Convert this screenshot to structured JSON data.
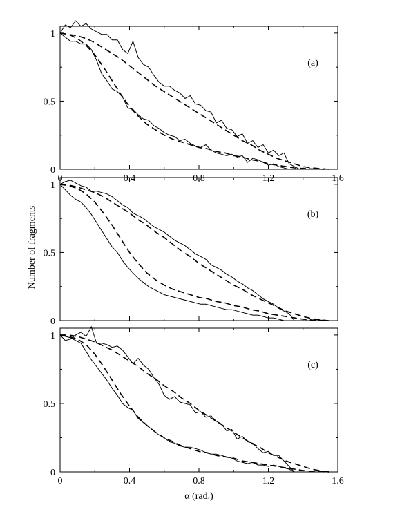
{
  "figure": {
    "ylabel": "Number of fragments",
    "xlabel": "α (rad.)"
  },
  "chart_data": [
    {
      "type": "line",
      "panel_label": "(a)",
      "xlim": [
        0,
        1.6
      ],
      "ylim": [
        0,
        1.05
      ],
      "x_ticks": [
        "0",
        "0.4",
        "0.8",
        "1.2",
        "1.6"
      ],
      "x_tick_values": [
        0,
        0.4,
        0.8,
        1.2,
        1.6
      ],
      "y_ticks": [
        "0",
        "0.5",
        "1"
      ],
      "y_tick_values": [
        0,
        0.5,
        1
      ],
      "series": [
        {
          "style": "solid",
          "x": [
            0,
            0.03,
            0.06,
            0.09,
            0.12,
            0.15,
            0.18,
            0.21,
            0.24,
            0.27,
            0.3,
            0.33,
            0.36,
            0.39,
            0.42,
            0.45,
            0.48,
            0.51,
            0.54,
            0.57,
            0.6,
            0.63,
            0.66,
            0.69,
            0.72,
            0.75,
            0.78,
            0.81,
            0.84,
            0.87,
            0.9,
            0.93,
            0.96,
            0.99,
            1.02,
            1.05,
            1.08,
            1.11,
            1.14,
            1.17,
            1.2,
            1.23,
            1.26,
            1.29,
            1.32,
            1.35,
            1.38
          ],
          "y": [
            1.0,
            1.06,
            1.04,
            1.09,
            1.05,
            1.07,
            1.03,
            1.01,
            0.99,
            0.99,
            0.95,
            0.95,
            0.88,
            0.85,
            0.94,
            0.82,
            0.77,
            0.75,
            0.69,
            0.64,
            0.61,
            0.61,
            0.58,
            0.56,
            0.52,
            0.54,
            0.48,
            0.47,
            0.43,
            0.42,
            0.34,
            0.36,
            0.3,
            0.29,
            0.24,
            0.26,
            0.19,
            0.21,
            0.16,
            0.18,
            0.12,
            0.14,
            0.1,
            0.12,
            0.04,
            0.02,
            0.0
          ]
        },
        {
          "style": "solid",
          "x": [
            0,
            0.03,
            0.06,
            0.09,
            0.12,
            0.15,
            0.18,
            0.21,
            0.24,
            0.27,
            0.3,
            0.33,
            0.36,
            0.39,
            0.42,
            0.45,
            0.48,
            0.51,
            0.54,
            0.57,
            0.6,
            0.63,
            0.66,
            0.69,
            0.72,
            0.75,
            0.78,
            0.81,
            0.84,
            0.87,
            0.9,
            0.93,
            0.96,
            0.99,
            1.02,
            1.05,
            1.08,
            1.11,
            1.14,
            1.17,
            1.2,
            1.23,
            1.26,
            1.29,
            1.32
          ],
          "y": [
            1.0,
            0.97,
            0.94,
            0.94,
            0.92,
            0.92,
            0.88,
            0.8,
            0.7,
            0.65,
            0.59,
            0.57,
            0.53,
            0.45,
            0.44,
            0.4,
            0.37,
            0.36,
            0.32,
            0.3,
            0.27,
            0.25,
            0.24,
            0.21,
            0.22,
            0.19,
            0.17,
            0.16,
            0.18,
            0.14,
            0.12,
            0.11,
            0.1,
            0.11,
            0.09,
            0.1,
            0.05,
            0.08,
            0.07,
            0.05,
            0.03,
            0.04,
            0.02,
            0.01,
            0.0
          ]
        },
        {
          "style": "dashed",
          "x": [
            0,
            0.05,
            0.1,
            0.15,
            0.2,
            0.25,
            0.3,
            0.35,
            0.4,
            0.45,
            0.5,
            0.55,
            0.6,
            0.65,
            0.7,
            0.75,
            0.8,
            0.85,
            0.9,
            0.95,
            1.0,
            1.05,
            1.1,
            1.15,
            1.2,
            1.25,
            1.3,
            1.35,
            1.4,
            1.45,
            1.5,
            1.55
          ],
          "y": [
            1.0,
            0.99,
            0.98,
            0.96,
            0.93,
            0.89,
            0.85,
            0.81,
            0.76,
            0.71,
            0.66,
            0.61,
            0.57,
            0.53,
            0.49,
            0.45,
            0.41,
            0.37,
            0.33,
            0.29,
            0.25,
            0.21,
            0.18,
            0.14,
            0.11,
            0.08,
            0.06,
            0.04,
            0.02,
            0.01,
            0.005,
            0.0
          ]
        },
        {
          "style": "dashed",
          "x": [
            0,
            0.05,
            0.1,
            0.15,
            0.2,
            0.25,
            0.3,
            0.35,
            0.4,
            0.45,
            0.5,
            0.55,
            0.6,
            0.65,
            0.7,
            0.75,
            0.8,
            0.85,
            0.9,
            0.95,
            1.0,
            1.05,
            1.1,
            1.15,
            1.2,
            1.25,
            1.3,
            1.35,
            1.4,
            1.45,
            1.5,
            1.55
          ],
          "y": [
            1.0,
            0.99,
            0.96,
            0.91,
            0.84,
            0.75,
            0.65,
            0.55,
            0.46,
            0.39,
            0.33,
            0.29,
            0.25,
            0.22,
            0.2,
            0.18,
            0.16,
            0.15,
            0.13,
            0.12,
            0.1,
            0.09,
            0.07,
            0.06,
            0.04,
            0.03,
            0.02,
            0.01,
            0.006,
            0.003,
            0.001,
            0.0
          ]
        }
      ]
    },
    {
      "type": "line",
      "panel_label": "(b)",
      "xlim": [
        0,
        1.6
      ],
      "ylim": [
        0,
        1.05
      ],
      "x_ticks": [],
      "x_tick_values": [
        0,
        0.4,
        0.8,
        1.2,
        1.6
      ],
      "y_ticks": [
        "0",
        "0.5",
        "1"
      ],
      "y_tick_values": [
        0,
        0.5,
        1
      ],
      "series": [
        {
          "style": "solid",
          "x": [
            0,
            0.03,
            0.06,
            0.09,
            0.12,
            0.15,
            0.18,
            0.21,
            0.24,
            0.27,
            0.3,
            0.33,
            0.36,
            0.39,
            0.42,
            0.45,
            0.48,
            0.51,
            0.54,
            0.57,
            0.6,
            0.63,
            0.66,
            0.69,
            0.72,
            0.75,
            0.78,
            0.81,
            0.84,
            0.87,
            0.9,
            0.93,
            0.96,
            0.99,
            1.02,
            1.05,
            1.08,
            1.11,
            1.14,
            1.17,
            1.2,
            1.23,
            1.26,
            1.29,
            1.32,
            1.35
          ],
          "y": [
            1.0,
            1.02,
            1.03,
            1.01,
            0.99,
            0.98,
            0.95,
            0.95,
            0.94,
            0.93,
            0.91,
            0.88,
            0.85,
            0.83,
            0.79,
            0.77,
            0.75,
            0.72,
            0.69,
            0.67,
            0.65,
            0.62,
            0.59,
            0.57,
            0.55,
            0.52,
            0.49,
            0.47,
            0.45,
            0.41,
            0.39,
            0.37,
            0.34,
            0.32,
            0.29,
            0.27,
            0.24,
            0.22,
            0.19,
            0.16,
            0.14,
            0.12,
            0.09,
            0.07,
            0.05,
            0.0
          ]
        },
        {
          "style": "solid",
          "x": [
            0,
            0.03,
            0.06,
            0.09,
            0.12,
            0.15,
            0.18,
            0.21,
            0.24,
            0.27,
            0.3,
            0.33,
            0.36,
            0.39,
            0.42,
            0.45,
            0.48,
            0.51,
            0.54,
            0.57,
            0.6,
            0.63,
            0.66,
            0.69,
            0.72,
            0.75,
            0.78,
            0.81,
            0.84,
            0.87,
            0.9,
            0.93,
            0.96,
            0.99,
            1.02,
            1.05,
            1.08,
            1.11,
            1.14,
            1.17,
            1.2,
            1.23,
            1.26,
            1.29
          ],
          "y": [
            1.0,
            0.96,
            0.92,
            0.89,
            0.87,
            0.83,
            0.78,
            0.72,
            0.66,
            0.6,
            0.54,
            0.5,
            0.44,
            0.39,
            0.35,
            0.31,
            0.28,
            0.25,
            0.23,
            0.21,
            0.19,
            0.18,
            0.17,
            0.16,
            0.15,
            0.14,
            0.13,
            0.12,
            0.12,
            0.11,
            0.1,
            0.09,
            0.08,
            0.08,
            0.07,
            0.06,
            0.05,
            0.04,
            0.04,
            0.03,
            0.02,
            0.02,
            0.01,
            0.0
          ]
        },
        {
          "style": "dashed",
          "x": [
            0,
            0.05,
            0.1,
            0.15,
            0.2,
            0.25,
            0.3,
            0.35,
            0.4,
            0.45,
            0.5,
            0.55,
            0.6,
            0.65,
            0.7,
            0.75,
            0.8,
            0.85,
            0.9,
            0.95,
            1.0,
            1.05,
            1.1,
            1.15,
            1.2,
            1.25,
            1.3,
            1.35,
            1.4,
            1.45,
            1.5,
            1.55
          ],
          "y": [
            1.0,
            0.995,
            0.98,
            0.96,
            0.94,
            0.91,
            0.87,
            0.83,
            0.79,
            0.74,
            0.7,
            0.65,
            0.61,
            0.56,
            0.51,
            0.47,
            0.42,
            0.38,
            0.34,
            0.3,
            0.26,
            0.23,
            0.19,
            0.16,
            0.13,
            0.1,
            0.07,
            0.05,
            0.03,
            0.015,
            0.005,
            0.0
          ]
        },
        {
          "style": "dashed",
          "x": [
            0,
            0.05,
            0.1,
            0.15,
            0.2,
            0.25,
            0.3,
            0.35,
            0.4,
            0.45,
            0.5,
            0.55,
            0.6,
            0.65,
            0.7,
            0.75,
            0.8,
            0.85,
            0.9,
            0.95,
            1.0,
            1.05,
            1.1,
            1.15,
            1.2,
            1.25,
            1.3,
            1.35,
            1.4,
            1.45,
            1.5,
            1.55
          ],
          "y": [
            1.0,
            0.99,
            0.97,
            0.93,
            0.87,
            0.79,
            0.7,
            0.6,
            0.5,
            0.42,
            0.35,
            0.3,
            0.26,
            0.23,
            0.21,
            0.19,
            0.17,
            0.16,
            0.14,
            0.13,
            0.11,
            0.1,
            0.08,
            0.07,
            0.05,
            0.04,
            0.03,
            0.02,
            0.01,
            0.005,
            0.002,
            0.0
          ]
        }
      ]
    },
    {
      "type": "line",
      "panel_label": "(c)",
      "xlim": [
        0,
        1.6
      ],
      "ylim": [
        0,
        1.05
      ],
      "x_ticks": [
        "0",
        "0.4",
        "0.8",
        "1.2",
        "1.6"
      ],
      "x_tick_values": [
        0,
        0.4,
        0.8,
        1.2,
        1.6
      ],
      "y_ticks": [
        "0",
        "0.5",
        "1"
      ],
      "y_tick_values": [
        0,
        0.5,
        1
      ],
      "series": [
        {
          "style": "solid",
          "x": [
            0,
            0.03,
            0.06,
            0.09,
            0.12,
            0.15,
            0.18,
            0.21,
            0.24,
            0.27,
            0.3,
            0.33,
            0.36,
            0.39,
            0.42,
            0.45,
            0.48,
            0.51,
            0.54,
            0.57,
            0.6,
            0.63,
            0.66,
            0.69,
            0.72,
            0.75,
            0.78,
            0.81,
            0.84,
            0.87,
            0.9,
            0.93,
            0.96,
            0.99,
            1.02,
            1.05,
            1.08,
            1.11,
            1.14,
            1.17,
            1.2,
            1.23,
            1.26,
            1.29,
            1.32,
            1.35
          ],
          "y": [
            1.0,
            0.96,
            0.97,
            1.0,
            1.02,
            0.99,
            1.06,
            0.94,
            0.94,
            0.93,
            0.91,
            0.92,
            0.89,
            0.84,
            0.79,
            0.83,
            0.78,
            0.75,
            0.69,
            0.64,
            0.56,
            0.53,
            0.55,
            0.51,
            0.5,
            0.49,
            0.43,
            0.44,
            0.4,
            0.41,
            0.37,
            0.35,
            0.3,
            0.31,
            0.24,
            0.26,
            0.22,
            0.21,
            0.17,
            0.14,
            0.15,
            0.12,
            0.12,
            0.08,
            0.04,
            0.0
          ]
        },
        {
          "style": "solid",
          "x": [
            0,
            0.03,
            0.06,
            0.09,
            0.12,
            0.15,
            0.18,
            0.21,
            0.24,
            0.27,
            0.3,
            0.33,
            0.36,
            0.39,
            0.42,
            0.45,
            0.48,
            0.51,
            0.54,
            0.57,
            0.6,
            0.63,
            0.66,
            0.69,
            0.72,
            0.75,
            0.78,
            0.81,
            0.84,
            0.87,
            0.9,
            0.93,
            0.96,
            0.99,
            1.02,
            1.05,
            1.08,
            1.11,
            1.14,
            1.17,
            1.2,
            1.23,
            1.26,
            1.29,
            1.32,
            1.35
          ],
          "y": [
            1.0,
            0.99,
            0.98,
            0.96,
            0.94,
            0.88,
            0.82,
            0.77,
            0.72,
            0.67,
            0.61,
            0.56,
            0.5,
            0.47,
            0.45,
            0.39,
            0.36,
            0.33,
            0.3,
            0.27,
            0.25,
            0.22,
            0.21,
            0.19,
            0.18,
            0.18,
            0.17,
            0.16,
            0.14,
            0.13,
            0.13,
            0.12,
            0.11,
            0.1,
            0.08,
            0.07,
            0.06,
            0.07,
            0.05,
            0.05,
            0.04,
            0.05,
            0.04,
            0.03,
            0.02,
            0.0
          ]
        },
        {
          "style": "dashed",
          "x": [
            0,
            0.05,
            0.1,
            0.15,
            0.2,
            0.25,
            0.3,
            0.35,
            0.4,
            0.45,
            0.5,
            0.55,
            0.6,
            0.65,
            0.7,
            0.75,
            0.8,
            0.85,
            0.9,
            0.95,
            1.0,
            1.05,
            1.1,
            1.15,
            1.2,
            1.25,
            1.3,
            1.35,
            1.4,
            1.45,
            1.5,
            1.55
          ],
          "y": [
            1.0,
            1.0,
            0.99,
            0.97,
            0.95,
            0.92,
            0.89,
            0.85,
            0.81,
            0.77,
            0.72,
            0.68,
            0.63,
            0.59,
            0.54,
            0.5,
            0.45,
            0.41,
            0.37,
            0.33,
            0.29,
            0.25,
            0.21,
            0.18,
            0.14,
            0.11,
            0.08,
            0.06,
            0.04,
            0.02,
            0.008,
            0.0
          ]
        },
        {
          "style": "dashed",
          "x": [
            0,
            0.05,
            0.1,
            0.15,
            0.2,
            0.25,
            0.3,
            0.35,
            0.4,
            0.45,
            0.5,
            0.55,
            0.6,
            0.65,
            0.7,
            0.75,
            0.8,
            0.85,
            0.9,
            0.95,
            1.0,
            1.05,
            1.1,
            1.15,
            1.2,
            1.25,
            1.3,
            1.35,
            1.4,
            1.45,
            1.5,
            1.55
          ],
          "y": [
            1.0,
            0.99,
            0.97,
            0.93,
            0.86,
            0.77,
            0.67,
            0.57,
            0.48,
            0.4,
            0.34,
            0.29,
            0.25,
            0.22,
            0.19,
            0.17,
            0.15,
            0.14,
            0.12,
            0.11,
            0.1,
            0.08,
            0.07,
            0.06,
            0.05,
            0.04,
            0.03,
            0.02,
            0.01,
            0.005,
            0.002,
            0.0
          ]
        }
      ]
    }
  ]
}
